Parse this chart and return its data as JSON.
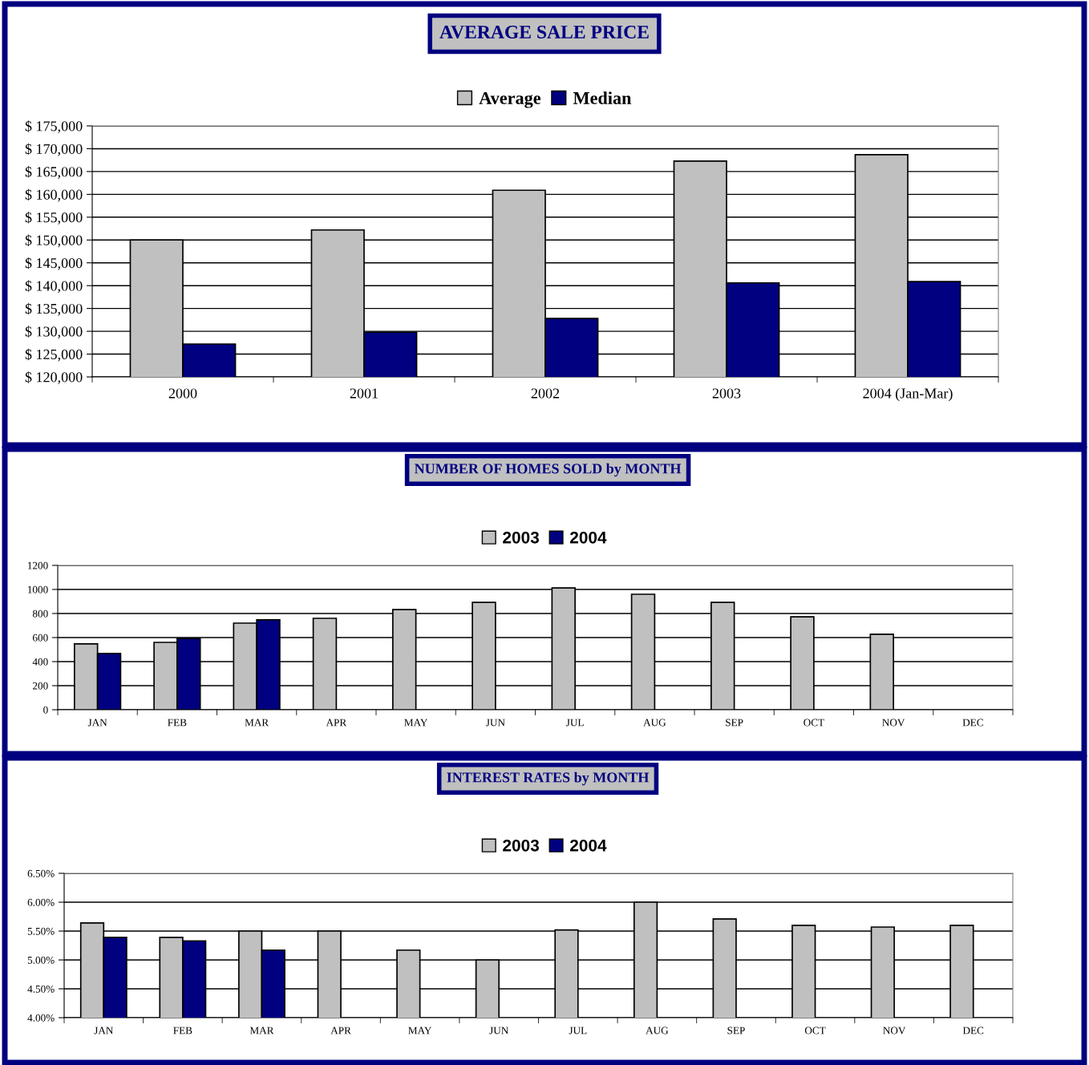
{
  "chart_data": [
    {
      "type": "bar",
      "title": "AVERAGE SALE PRICE",
      "categories": [
        "2000",
        "2001",
        "2002",
        "2003",
        "2004 (Jan-Mar)"
      ],
      "series": [
        {
          "name": "Average",
          "color": "#c0c0c0",
          "values": [
            150000,
            152200,
            160900,
            167300,
            168700
          ]
        },
        {
          "name": "Median",
          "color": "#000080",
          "values": [
            127200,
            129800,
            132800,
            140600,
            140900
          ]
        }
      ],
      "ylim": [
        120000,
        175000
      ],
      "yticks": [
        {
          "value": 120000,
          "label": "$ 120,000"
        },
        {
          "value": 125000,
          "label": "$ 125,000"
        },
        {
          "value": 130000,
          "label": "$ 130,000"
        },
        {
          "value": 135000,
          "label": "$ 135,000"
        },
        {
          "value": 140000,
          "label": "$ 140,000"
        },
        {
          "value": 145000,
          "label": "$ 145,000"
        },
        {
          "value": 150000,
          "label": "$ 150,000"
        },
        {
          "value": 155000,
          "label": "$ 155,000"
        },
        {
          "value": 160000,
          "label": "$ 160,000"
        },
        {
          "value": 165000,
          "label": "$ 165,000"
        },
        {
          "value": 170000,
          "label": "$ 170,000"
        },
        {
          "value": 175000,
          "label": "$ 175,000"
        }
      ],
      "grid": "y",
      "legend": "top"
    },
    {
      "type": "bar",
      "title": "NUMBER OF HOMES SOLD by MONTH",
      "categories": [
        "JAN",
        "FEB",
        "MAR",
        "APR",
        "MAY",
        "JUN",
        "JUL",
        "AUG",
        "SEP",
        "OCT",
        "NOV",
        "DEC"
      ],
      "series": [
        {
          "name": "2003",
          "color": "#c0c0c0",
          "values": [
            547,
            560,
            720,
            760,
            833,
            893,
            1013,
            960,
            893,
            773,
            627,
            null
          ]
        },
        {
          "name": "2004",
          "color": "#000080",
          "values": [
            467,
            593,
            747,
            null,
            null,
            null,
            null,
            null,
            null,
            null,
            null,
            null
          ]
        }
      ],
      "ylim": [
        0,
        1200
      ],
      "yticks": [
        0,
        200,
        400,
        600,
        800,
        1000,
        1200
      ],
      "grid": "y",
      "legend": "top"
    },
    {
      "type": "bar",
      "title": "INTEREST RATES by MONTH",
      "categories": [
        "JAN",
        "FEB",
        "MAR",
        "APR",
        "MAY",
        "JUN",
        "JUL",
        "AUG",
        "SEP",
        "OCT",
        "NOV",
        "DEC"
      ],
      "series": [
        {
          "name": "2003",
          "color": "#c0c0c0",
          "values": [
            5.64,
            5.39,
            5.5,
            5.5,
            5.17,
            5.0,
            5.52,
            6.0,
            5.71,
            5.6,
            5.57,
            5.6
          ]
        },
        {
          "name": "2004",
          "color": "#000080",
          "values": [
            5.39,
            5.33,
            5.17,
            null,
            null,
            null,
            null,
            null,
            null,
            null,
            null,
            null
          ]
        }
      ],
      "ylim": [
        4.0,
        6.5
      ],
      "yticks": [
        {
          "value": 4.0,
          "label": "4.00%"
        },
        {
          "value": 4.5,
          "label": "4.50%"
        },
        {
          "value": 5.0,
          "label": "5.00%"
        },
        {
          "value": 5.5,
          "label": "5.50%"
        },
        {
          "value": 6.0,
          "label": "6.00%"
        },
        {
          "value": 6.5,
          "label": "6.50%"
        }
      ],
      "grid": "y",
      "legend": "top"
    }
  ]
}
